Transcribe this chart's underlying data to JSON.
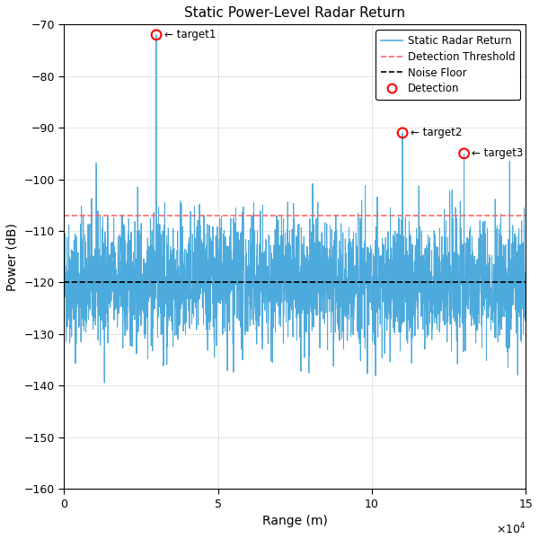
{
  "title": "Static Power-Level Radar Return",
  "xlabel": "Range (m)",
  "ylabel": "Power (dB)",
  "xlim": [
    0,
    150000
  ],
  "ylim": [
    -160,
    -70
  ],
  "noise_floor": -120,
  "detection_threshold": -107,
  "num_points": 3000,
  "targets": [
    {
      "range": 30000,
      "power": -72,
      "label": "target1"
    },
    {
      "range": 110000,
      "power": -91,
      "label": "target2"
    },
    {
      "range": 130000,
      "power": -95,
      "label": "target3"
    }
  ],
  "signal_color": "#4DAADC",
  "threshold_color": "#FF6666",
  "noise_floor_color": "#000000",
  "detection_color": "red",
  "noise_std": 6,
  "legend_labels": [
    "Static Radar Return",
    "Detection Threshold",
    "Noise Floor",
    "Detection"
  ],
  "seed": 42,
  "figsize": [
    6.0,
    6.0
  ],
  "dpi": 100
}
